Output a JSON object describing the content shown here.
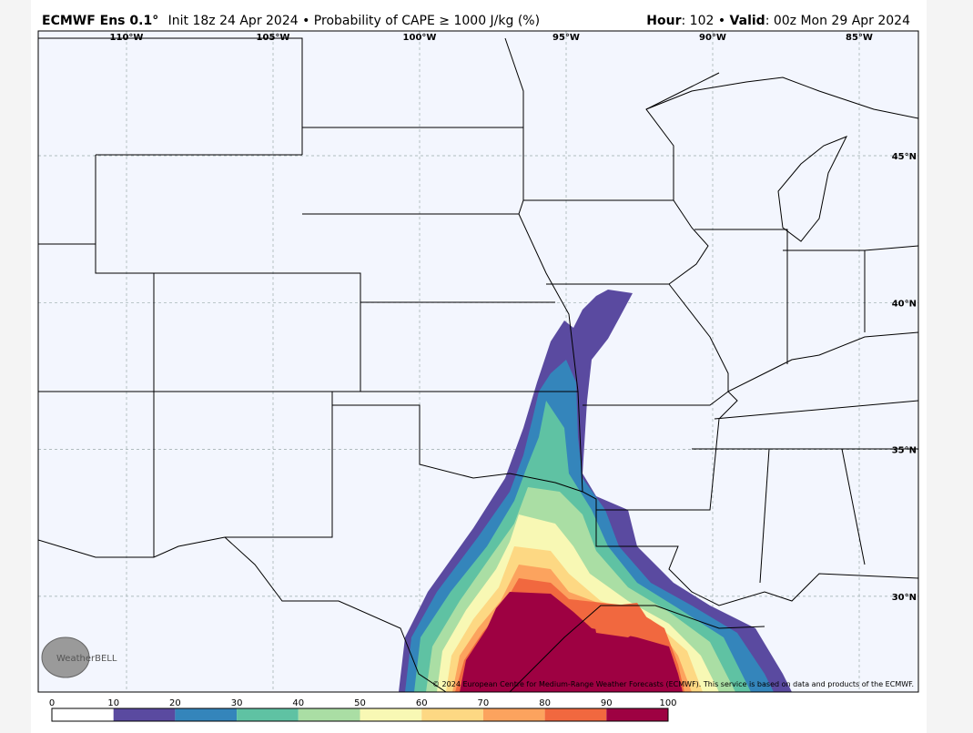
{
  "header": {
    "model": "ECMWF Ens 0.1°",
    "description": "Init 18z 24 Apr 2024 • Probability of CAPE ≥ 1000 J/kg (%)",
    "hour_label": "Hour",
    "hour_value": ": 102 • ",
    "valid_label": "Valid",
    "valid_value": ": 00z Mon 29 Apr 2024"
  },
  "map": {
    "longitude_labels": [
      "110°W",
      "105°W",
      "100°W",
      "95°W",
      "90°W",
      "85°W"
    ],
    "latitude_labels": [
      "45°N",
      "40°N",
      "35°N",
      "30°N"
    ],
    "logo": "WeatherBELL",
    "copyright": "© 2024 European Centre for Medium-Range Weather Forecasts (ECMWF). This service is based on data and products of the ECMWF."
  },
  "colorbar": {
    "ticks": [
      0,
      10,
      20,
      30,
      40,
      50,
      60,
      70,
      80,
      90,
      100
    ],
    "colors": [
      "#ffffff",
      "#5a4aa0",
      "#3485bb",
      "#5fc2a3",
      "#aadea4",
      "#f8f8b4",
      "#fdd883",
      "#fca35e",
      "#f1683f",
      "#9e0142"
    ]
  }
}
